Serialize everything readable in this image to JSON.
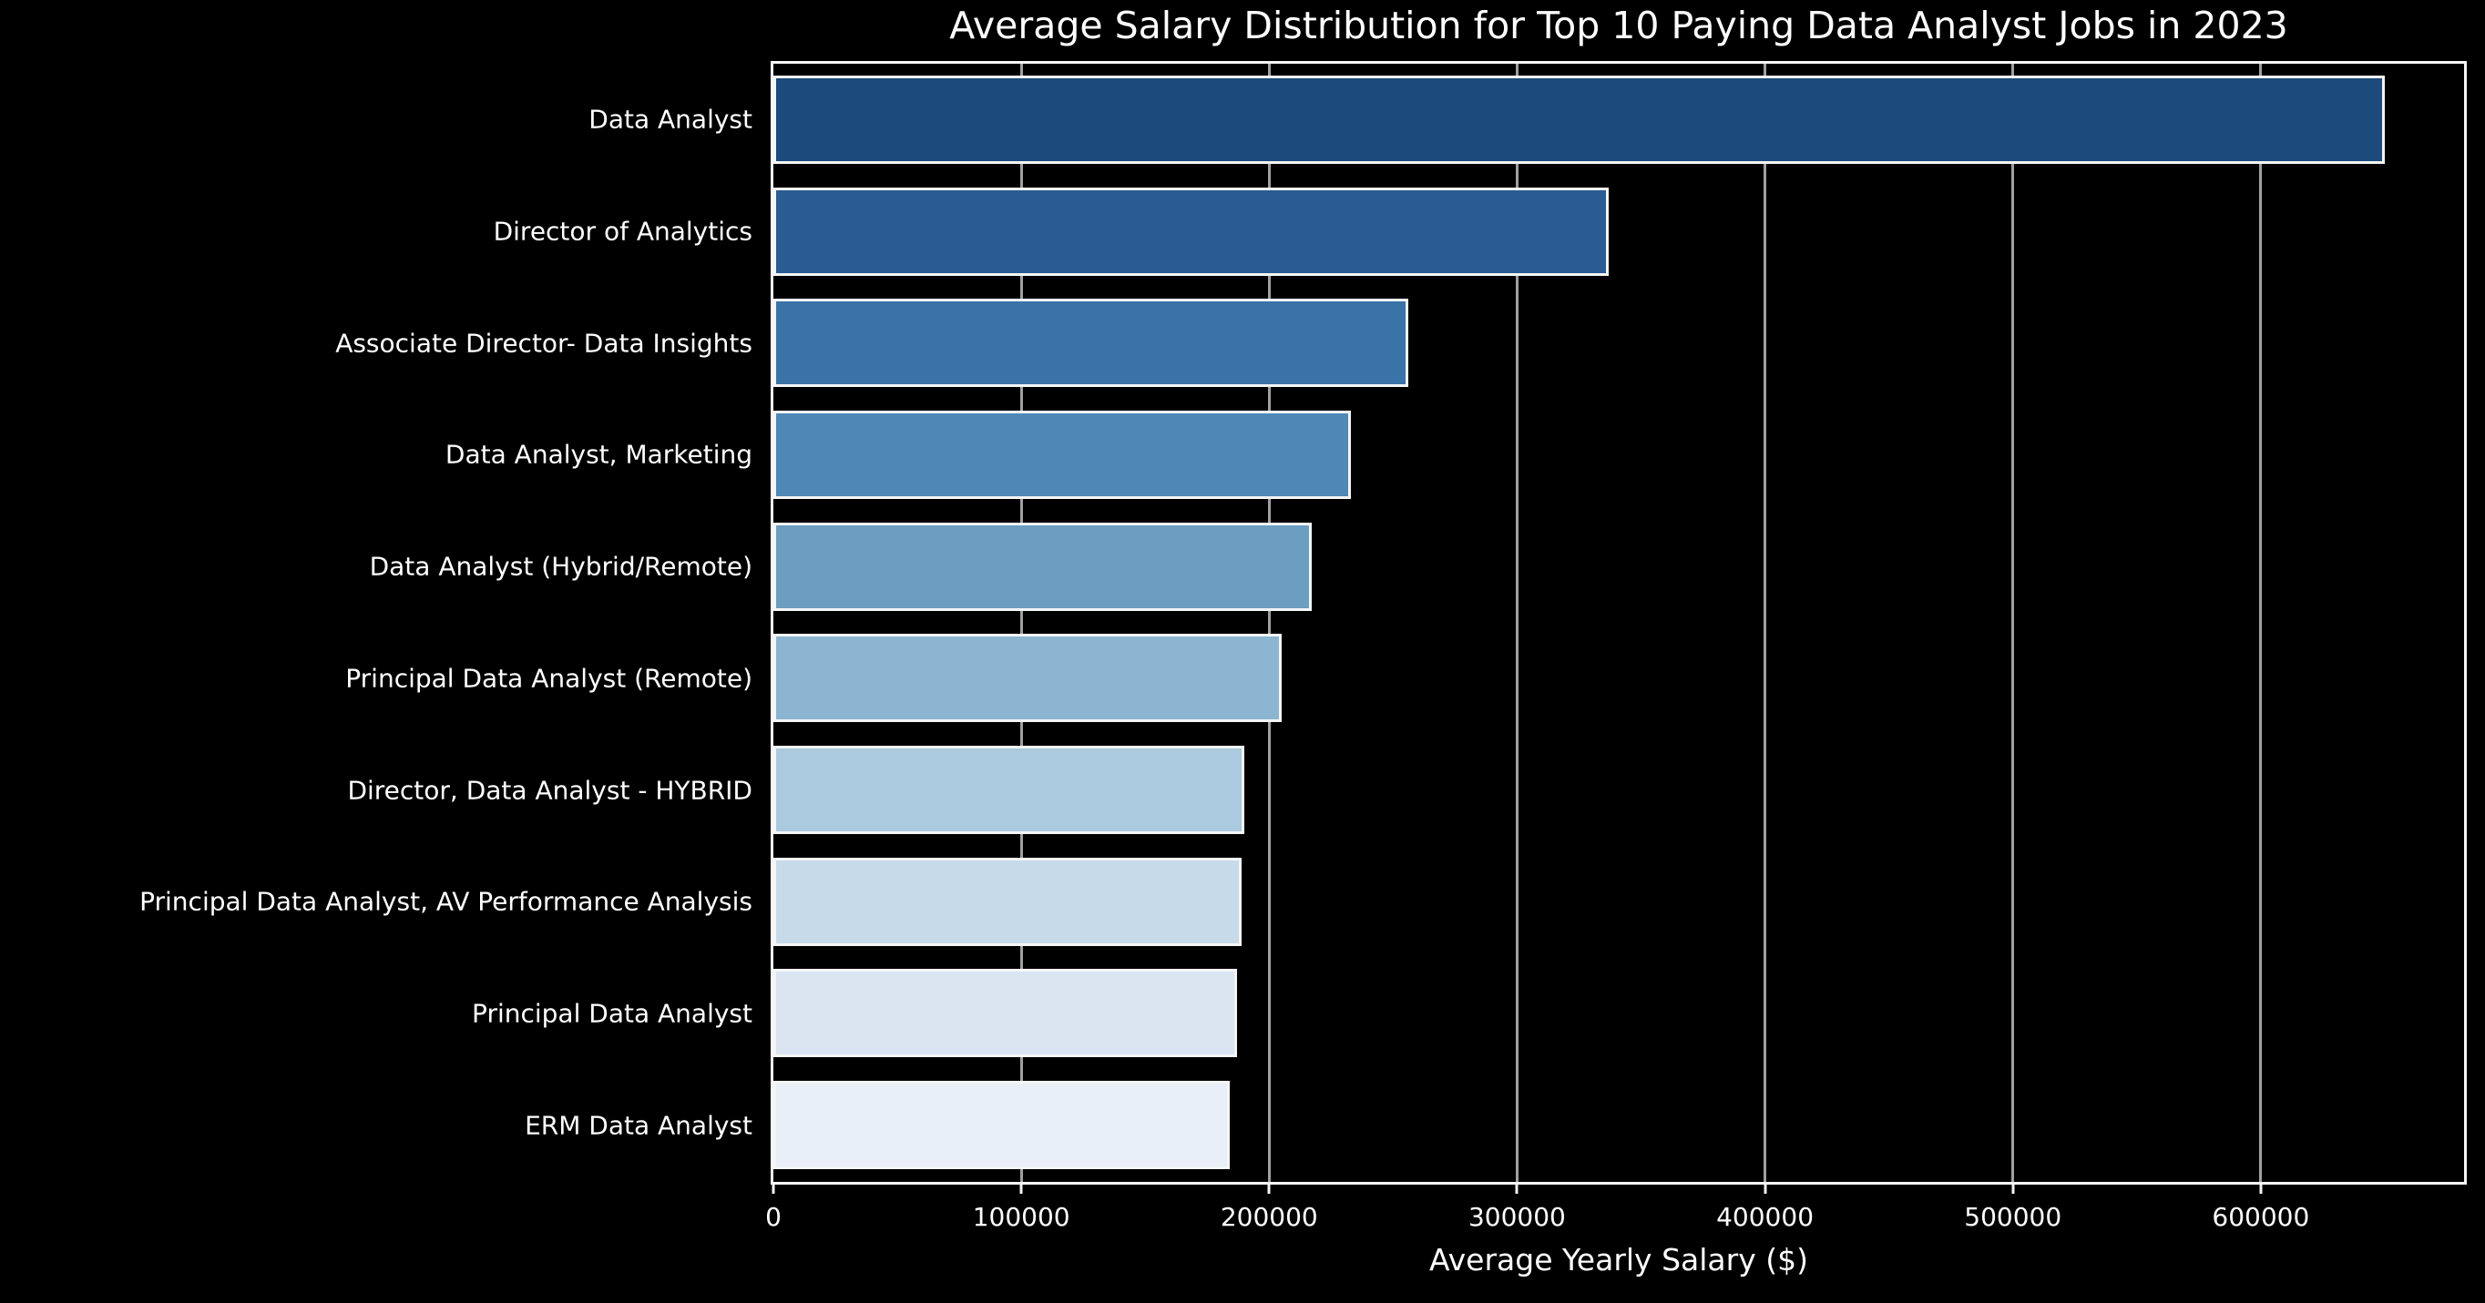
{
  "chart_data": {
    "type": "bar",
    "orientation": "horizontal",
    "title": "Average Salary Distribution for Top 10 Paying Data Analyst Jobs in 2023",
    "xlabel": "Average Yearly Salary ($)",
    "ylabel": "",
    "categories": [
      "Data Analyst",
      "Director of Analytics",
      "Associate Director- Data Insights",
      "Data Analyst, Marketing",
      "Data Analyst (Hybrid/Remote)",
      "Principal Data Analyst (Remote)",
      "Director, Data Analyst - HYBRID",
      "Principal Data Analyst, AV Performance Analysis",
      "Principal Data Analyst",
      "ERM Data Analyst"
    ],
    "values": [
      650000,
      337000,
      256000,
      233000,
      217000,
      205000,
      190000,
      189000,
      187000,
      184000
    ],
    "bar_colors": [
      "#1c4a7c",
      "#2a5c93",
      "#3a73a8",
      "#4f88b5",
      "#6c9ec2",
      "#8cb5d1",
      "#abc9df",
      "#c7dae9",
      "#dae5f1",
      "#e9eff8"
    ],
    "x_ticks": [
      0,
      100000,
      200000,
      300000,
      400000,
      500000,
      600000
    ],
    "x_tick_labels": [
      "0",
      "100000",
      "200000",
      "300000",
      "400000",
      "500000",
      "600000"
    ],
    "xlim": [
      0,
      682000
    ],
    "grid": true,
    "legend": false,
    "colors": {
      "background": "#000000",
      "text": "#ffffff",
      "grid": "#a0a0a0",
      "spine": "#f5f5f5",
      "bar_edge": "#f5f5f5"
    }
  }
}
